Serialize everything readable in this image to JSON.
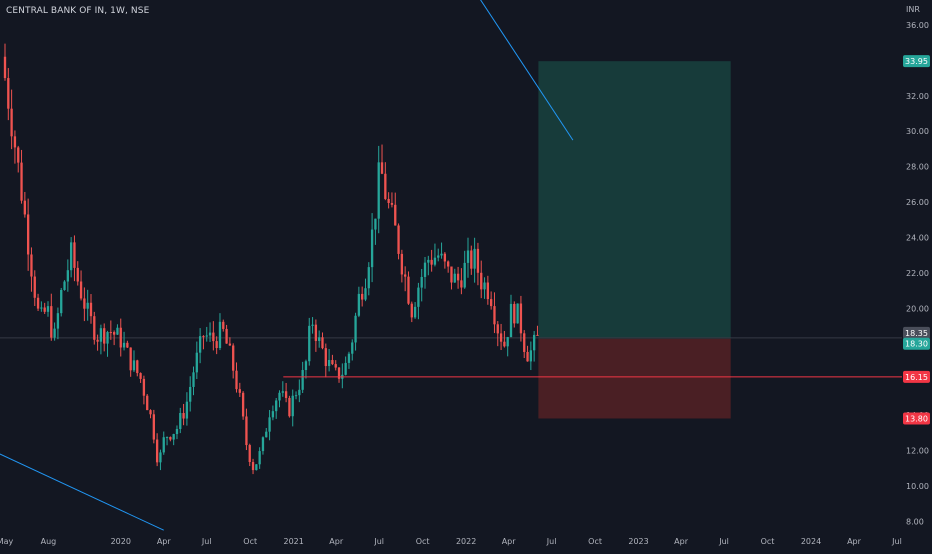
{
  "header": {
    "title": "CENTRAL BANK OF IN, 1W, NSE"
  },
  "colors": {
    "background": "#131722",
    "up": "#26a69a",
    "down": "#ef5350",
    "target_zone": "#173b3a",
    "stop_zone": "#4a1f24",
    "support_line": "#f23645",
    "trendline": "#2196f3",
    "last_price_line": "#363a45",
    "axis_text": "#b2b5be"
  },
  "chart_data": {
    "type": "candlestick",
    "currency": "INR",
    "ylim": [
      7.4,
      37.4
    ],
    "y_ticks": [
      "8.00",
      "10.00",
      "12.00",
      "14.00",
      "16.00",
      "18.00",
      "20.00",
      "22.00",
      "24.00",
      "26.00",
      "28.00",
      "30.00",
      "32.00",
      "34.00",
      "36.00"
    ],
    "x_ticks": [
      {
        "date": "2019-05-01",
        "label": "May"
      },
      {
        "date": "2019-08-01",
        "label": "Aug"
      },
      {
        "date": "2020-01-01",
        "label": "2020"
      },
      {
        "date": "2020-04-01",
        "label": "Apr"
      },
      {
        "date": "2020-07-01",
        "label": "Jul"
      },
      {
        "date": "2020-10-01",
        "label": "Oct"
      },
      {
        "date": "2021-01-01",
        "label": "2021"
      },
      {
        "date": "2021-04-01",
        "label": "Apr"
      },
      {
        "date": "2021-07-01",
        "label": "Jul"
      },
      {
        "date": "2021-10-01",
        "label": "Oct"
      },
      {
        "date": "2022-01-01",
        "label": "2022"
      },
      {
        "date": "2022-04-01",
        "label": "Apr"
      },
      {
        "date": "2022-07-01",
        "label": "Jul"
      },
      {
        "date": "2022-10-01",
        "label": "Oct"
      },
      {
        "date": "2023-01-01",
        "label": "2023"
      },
      {
        "date": "2023-04-01",
        "label": "Apr"
      },
      {
        "date": "2023-07-01",
        "label": "Jul"
      },
      {
        "date": "2023-10-01",
        "label": "Oct"
      },
      {
        "date": "2024-01-01",
        "label": "2024"
      },
      {
        "date": "2024-04-01",
        "label": "Apr"
      },
      {
        "date": "2024-07-01",
        "label": "Jul"
      }
    ],
    "x_range": [
      "2019-05-01",
      "2024-07-01"
    ],
    "price_path": [
      {
        "date": "2019-05-01",
        "price": 34.2
      },
      {
        "date": "2019-05-20",
        "price": 31.0
      },
      {
        "date": "2019-06-15",
        "price": 26.0
      },
      {
        "date": "2019-07-05",
        "price": 22.0
      },
      {
        "date": "2019-07-20",
        "price": 19.2
      },
      {
        "date": "2019-08-05",
        "price": 20.0
      },
      {
        "date": "2019-08-20",
        "price": 18.2
      },
      {
        "date": "2019-09-05",
        "price": 21.0
      },
      {
        "date": "2019-09-25",
        "price": 23.0
      },
      {
        "date": "2019-10-10",
        "price": 21.5
      },
      {
        "date": "2019-11-01",
        "price": 19.5
      },
      {
        "date": "2019-11-20",
        "price": 18.5
      },
      {
        "date": "2019-12-15",
        "price": 18.8
      },
      {
        "date": "2020-01-10",
        "price": 18.2
      },
      {
        "date": "2020-01-25",
        "price": 17.2
      },
      {
        "date": "2020-02-20",
        "price": 16.0
      },
      {
        "date": "2020-03-15",
        "price": 13.5
      },
      {
        "date": "2020-03-28",
        "price": 11.2
      },
      {
        "date": "2020-04-10",
        "price": 12.8
      },
      {
        "date": "2020-05-05",
        "price": 13.2
      },
      {
        "date": "2020-05-25",
        "price": 14.5
      },
      {
        "date": "2020-06-10",
        "price": 16.5
      },
      {
        "date": "2020-07-01",
        "price": 18.5
      },
      {
        "date": "2020-07-25",
        "price": 18.2
      },
      {
        "date": "2020-08-10",
        "price": 18.8
      },
      {
        "date": "2020-08-30",
        "price": 17.0
      },
      {
        "date": "2020-09-15",
        "price": 15.0
      },
      {
        "date": "2020-10-01",
        "price": 12.2
      },
      {
        "date": "2020-10-15",
        "price": 11.0
      },
      {
        "date": "2020-11-01",
        "price": 12.0
      },
      {
        "date": "2020-11-20",
        "price": 14.5
      },
      {
        "date": "2020-12-10",
        "price": 15.3
      },
      {
        "date": "2020-12-28",
        "price": 14.2
      },
      {
        "date": "2021-01-15",
        "price": 15.5
      },
      {
        "date": "2021-02-01",
        "price": 16.5
      },
      {
        "date": "2021-02-15",
        "price": 19.5
      },
      {
        "date": "2021-03-01",
        "price": 18.2
      },
      {
        "date": "2021-03-20",
        "price": 17.0
      },
      {
        "date": "2021-04-05",
        "price": 16.2
      },
      {
        "date": "2021-04-25",
        "price": 16.5
      },
      {
        "date": "2021-05-10",
        "price": 18.0
      },
      {
        "date": "2021-05-25",
        "price": 20.5
      },
      {
        "date": "2021-06-10",
        "price": 22.0
      },
      {
        "date": "2021-06-25",
        "price": 24.5
      },
      {
        "date": "2021-07-10",
        "price": 28.0
      },
      {
        "date": "2021-07-25",
        "price": 26.0
      },
      {
        "date": "2021-08-10",
        "price": 24.5
      },
      {
        "date": "2021-08-30",
        "price": 22.0
      },
      {
        "date": "2021-09-15",
        "price": 20.0
      },
      {
        "date": "2021-10-01",
        "price": 21.5
      },
      {
        "date": "2021-10-20",
        "price": 22.8
      },
      {
        "date": "2021-11-10",
        "price": 23.0
      },
      {
        "date": "2021-11-30",
        "price": 22.0
      },
      {
        "date": "2021-12-20",
        "price": 21.5
      },
      {
        "date": "2022-01-10",
        "price": 22.5
      },
      {
        "date": "2022-01-25",
        "price": 22.8
      },
      {
        "date": "2022-02-10",
        "price": 21.5
      },
      {
        "date": "2022-02-28",
        "price": 21.0
      },
      {
        "date": "2022-03-15",
        "price": 19.0
      },
      {
        "date": "2022-03-30",
        "price": 18.0
      },
      {
        "date": "2022-04-15",
        "price": 20.0
      },
      {
        "date": "2022-04-30",
        "price": 19.5
      },
      {
        "date": "2022-05-15",
        "price": 17.5
      },
      {
        "date": "2022-05-30",
        "price": 17.6
      },
      {
        "date": "2022-06-03",
        "price": 18.3
      }
    ],
    "series": [
      {
        "name": "CENTRAL BANK OF IN",
        "type": "candlestick"
      }
    ],
    "support_line": {
      "price": 16.15,
      "from": "2020-12-10",
      "to": "2024-07-01"
    },
    "trendlines": [
      {
        "from": {
          "date": "2019-04-20",
          "price": 11.8
        },
        "to": {
          "date": "2020-04-01",
          "price": 7.5
        }
      },
      {
        "from": {
          "date": "2022-01-12",
          "price": 38.2
        },
        "to": {
          "date": "2022-08-15",
          "price": 29.5
        }
      }
    ],
    "position": {
      "type": "long",
      "from": "2022-06-03",
      "to": "2023-07-15",
      "entry": 18.3,
      "target": 33.95,
      "stop": 13.8
    },
    "price_labels": [
      {
        "text": "33.95",
        "price": 33.95,
        "color": "#26a69a"
      },
      {
        "text": "18.35",
        "price": 18.35,
        "color": "#4a4e5a"
      },
      {
        "text": "18.30",
        "price": 18.3,
        "color": "#26a69a"
      },
      {
        "text": "16.15",
        "price": 16.15,
        "color": "#f23645"
      },
      {
        "text": "13.80",
        "price": 13.8,
        "color": "#f23645"
      }
    ]
  }
}
